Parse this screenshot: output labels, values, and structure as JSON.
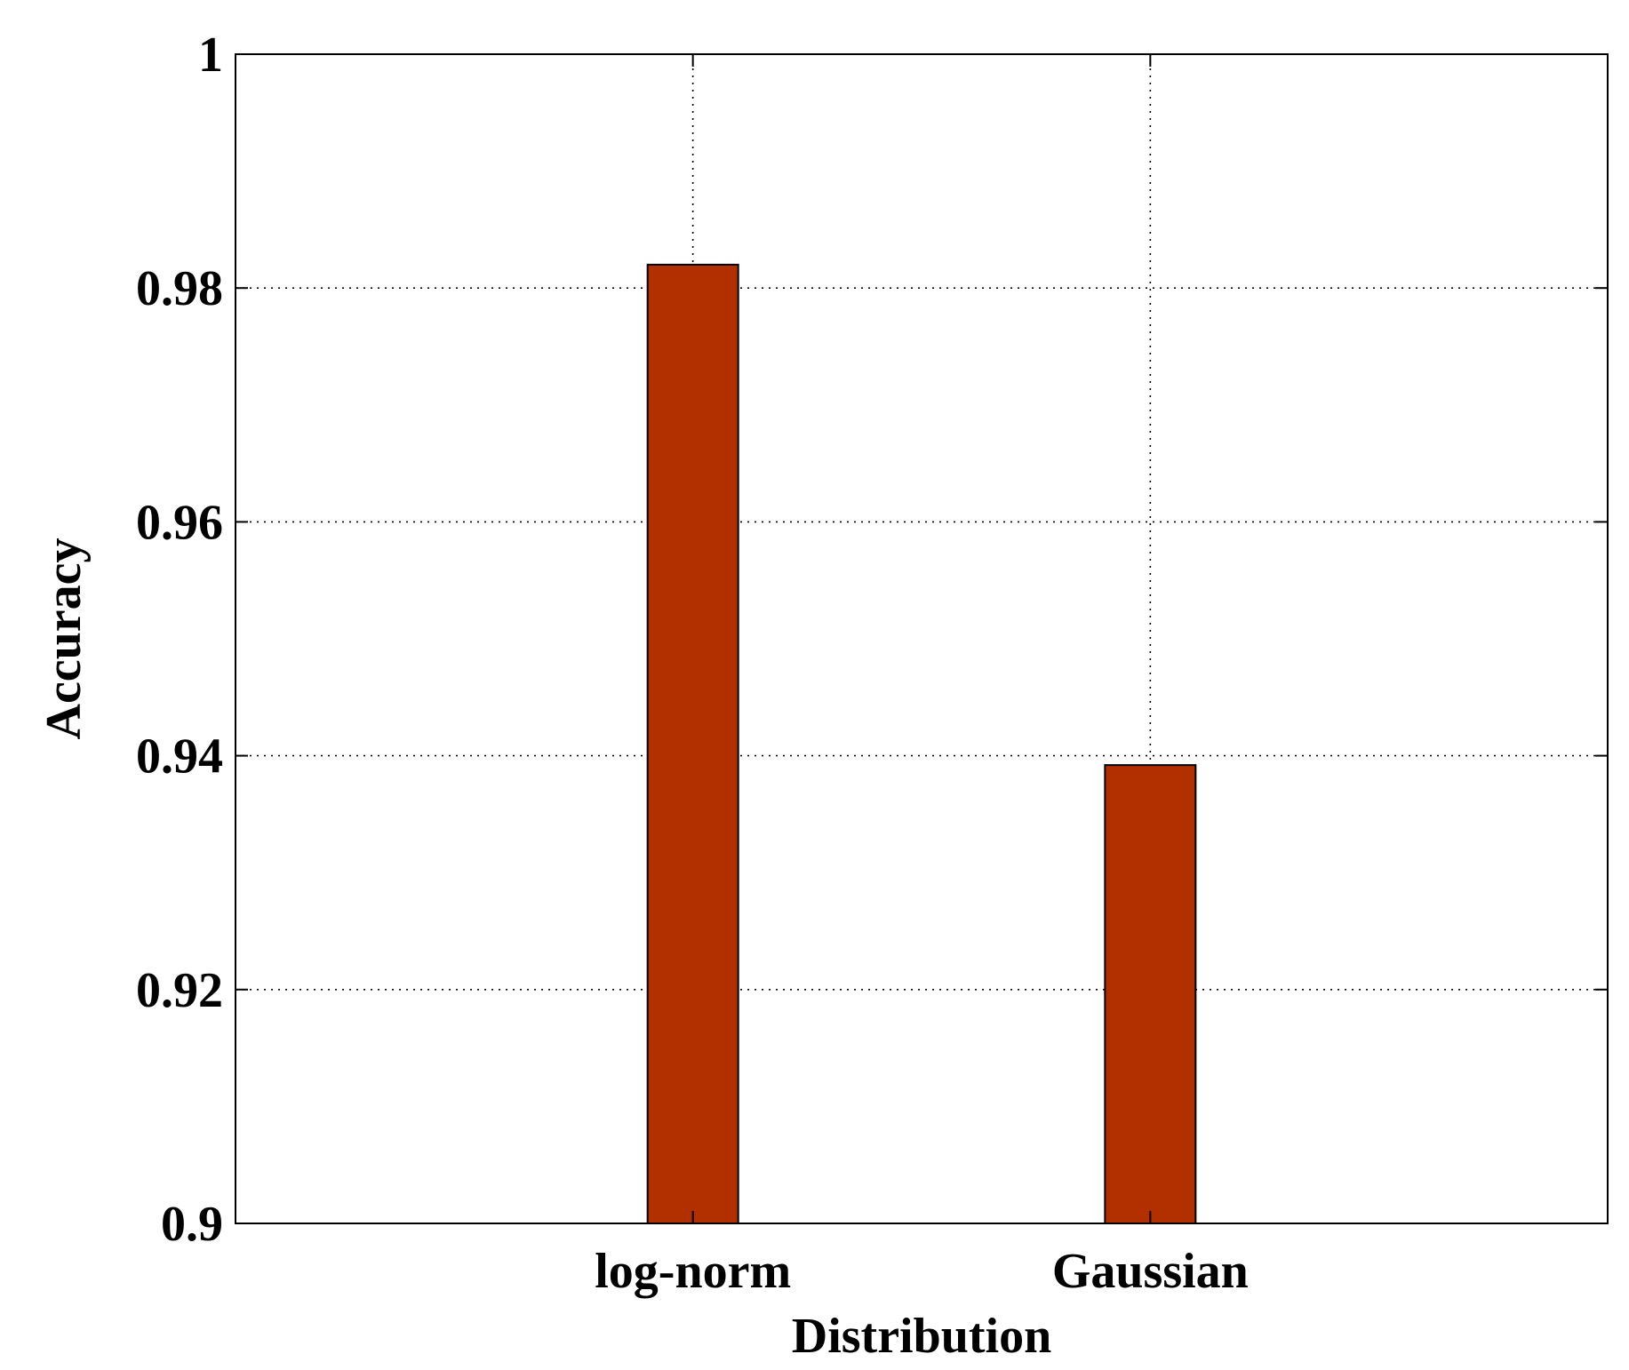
{
  "chart_data": {
    "type": "bar",
    "categories": [
      "log-norm",
      "Gaussian"
    ],
    "values": [
      0.982,
      0.9392
    ],
    "xlabel": "Distribution",
    "ylabel": "Accuracy",
    "ylim": [
      0.9,
      1.0
    ],
    "yticks": [
      "0.9",
      "0.92",
      "0.94",
      "0.96",
      "0.98",
      "1"
    ],
    "grid": true,
    "bar_color": "#B23000"
  }
}
